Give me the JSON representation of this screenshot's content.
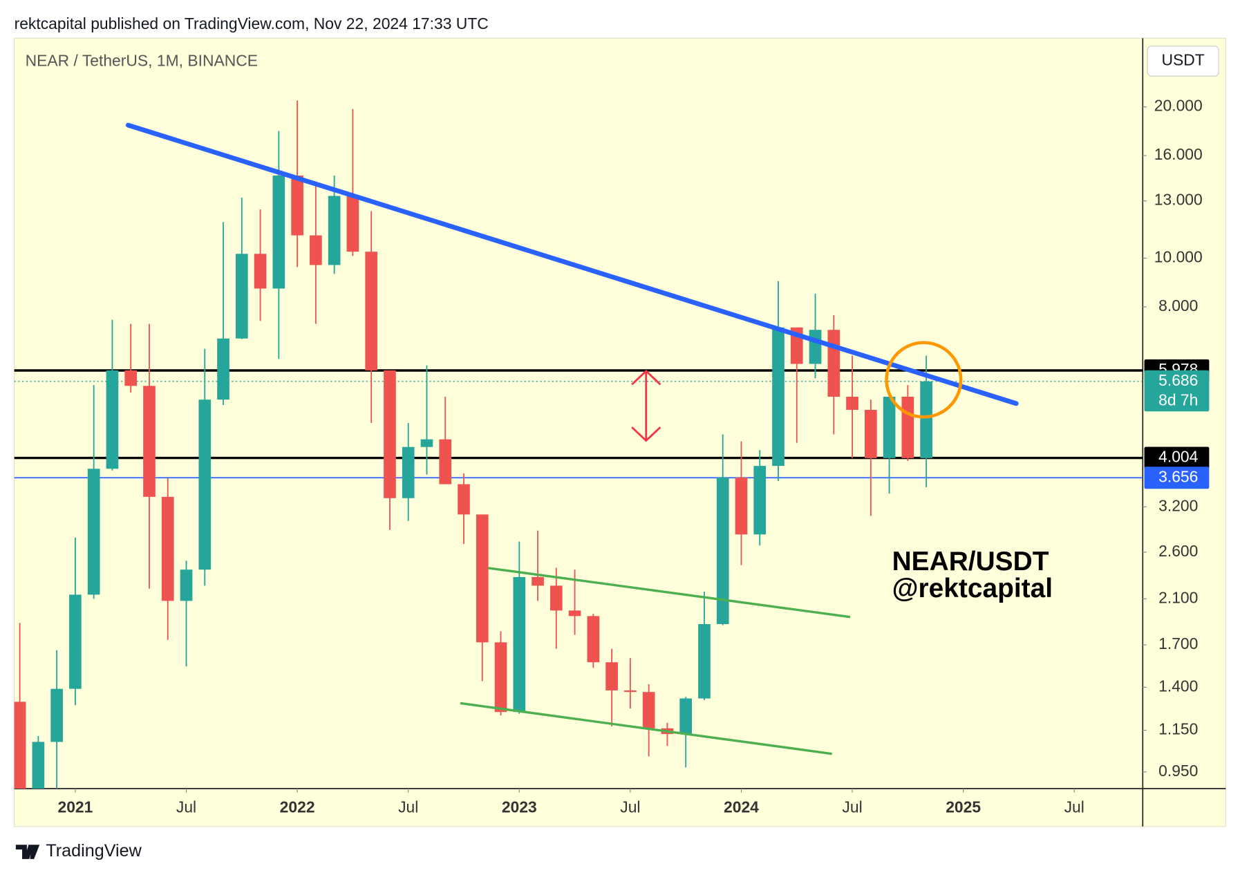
{
  "chart_data": {
    "type": "candlestick",
    "header": "rektcapital published on TradingView.com, Nov 22, 2024 17:33 UTC",
    "title": "NEAR / TetherUS, 1M, BINANCE",
    "currency": "USDT",
    "annotations": [
      "NEAR/USDT",
      "@rektcapital"
    ],
    "brand": "TradingView",
    "log_scale": true,
    "up_color": "#26a69a",
    "down_color": "#ef5350",
    "x": [
      "2020-10",
      "2020-11",
      "2020-12",
      "2021-01",
      "2021-02",
      "2021-03",
      "2021-04",
      "2021-05",
      "2021-06",
      "2021-07",
      "2021-08",
      "2021-09",
      "2021-10",
      "2021-11",
      "2021-12",
      "2022-01",
      "2022-02",
      "2022-03",
      "2022-04",
      "2022-05",
      "2022-06",
      "2022-07",
      "2022-08",
      "2022-09",
      "2022-10",
      "2022-11",
      "2022-12",
      "2023-01",
      "2023-02",
      "2023-03",
      "2023-04",
      "2023-05",
      "2023-06",
      "2023-07",
      "2023-08",
      "2023-09",
      "2023-10",
      "2023-11",
      "2023-12",
      "2024-01",
      "2024-02",
      "2024-03",
      "2024-04",
      "2024-05",
      "2024-06",
      "2024-07",
      "2024-08",
      "2024-09",
      "2024-10",
      "2024-11"
    ],
    "open": [
      1.31,
      0.86,
      1.09,
      1.39,
      2.14,
      3.81,
      5.98,
      5.57,
      3.35,
      2.08,
      2.4,
      5.23,
      6.92,
      10.2,
      8.7,
      14.6,
      11.1,
      9.69,
      13.3,
      10.3,
      5.98,
      3.33,
      4.21,
      4.36,
      3.55,
      3.09,
      1.72,
      1.25,
      2.32,
      2.23,
      1.99,
      1.94,
      1.57,
      1.38,
      1.37,
      1.16,
      1.13,
      1.33,
      1.87,
      3.66,
      2.82,
      3.86,
      7.28,
      6.16,
      7.2,
      5.3,
      4.99,
      4.0,
      5.3,
      4.0
    ],
    "high": [
      1.88,
      1.12,
      1.66,
      2.78,
      5.59,
      7.54,
      7.4,
      7.4,
      3.65,
      2.5,
      6.6,
      11.8,
      13.2,
      12.5,
      17.9,
      20.6,
      14.1,
      14.6,
      19.8,
      12.4,
      5.98,
      4.7,
      6.12,
      5.3,
      3.73,
      3.09,
      1.81,
      2.73,
      2.87,
      2.42,
      2.4,
      1.96,
      1.67,
      1.6,
      1.42,
      1.19,
      1.34,
      2.17,
      4.46,
      4.32,
      4.15,
      9.0,
      7.28,
      8.5,
      7.7,
      6.4,
      5.23,
      5.35,
      5.59,
      6.4
    ],
    "low": [
      0.82,
      0.82,
      0.88,
      1.29,
      2.1,
      3.78,
      5.4,
      2.2,
      1.74,
      1.54,
      2.23,
      5.1,
      6.9,
      7.5,
      6.3,
      9.6,
      7.4,
      9.3,
      10.1,
      4.7,
      2.88,
      3.0,
      3.71,
      3.55,
      2.7,
      1.44,
      1.23,
      1.24,
      2.08,
      1.67,
      1.78,
      1.53,
      1.17,
      1.27,
      1.02,
      1.07,
      0.97,
      1.32,
      1.86,
      2.45,
      2.68,
      3.6,
      4.29,
      5.77,
      4.46,
      4.0,
      3.07,
      3.4,
      3.95,
      3.5
    ],
    "close": [
      0.86,
      1.09,
      1.39,
      2.14,
      3.81,
      5.98,
      5.57,
      3.35,
      2.08,
      2.4,
      5.23,
      6.92,
      10.2,
      8.7,
      14.6,
      11.1,
      9.69,
      13.3,
      10.3,
      5.98,
      3.33,
      4.21,
      4.36,
      3.55,
      3.09,
      1.72,
      1.25,
      2.32,
      2.23,
      1.99,
      1.94,
      1.57,
      1.38,
      1.37,
      1.16,
      1.13,
      1.33,
      1.87,
      3.66,
      2.82,
      3.86,
      7.28,
      6.16,
      7.2,
      5.3,
      4.99,
      4.0,
      5.3,
      4.0,
      5.686
    ],
    "xlim": [
      "2020-10",
      "2025-10"
    ],
    "xticks": [
      {
        "value": "2021-01",
        "label": "2021"
      },
      {
        "value": "2021-07",
        "label": "Jul"
      },
      {
        "value": "2022-01",
        "label": "2022"
      },
      {
        "value": "2022-07",
        "label": "Jul"
      },
      {
        "value": "2023-01",
        "label": "2023"
      },
      {
        "value": "2023-07",
        "label": "Jul"
      },
      {
        "value": "2024-01",
        "label": "2024"
      },
      {
        "value": "2024-07",
        "label": "Jul"
      },
      {
        "value": "2025-01",
        "label": "2025"
      },
      {
        "value": "2025-07",
        "label": "Jul"
      }
    ],
    "ylim": [
      0.88,
      27.4
    ],
    "yticks": [
      {
        "value": 20,
        "label": "20.000"
      },
      {
        "value": 16,
        "label": "16.000"
      },
      {
        "value": 13,
        "label": "13.000"
      },
      {
        "value": 10,
        "label": "10.000"
      },
      {
        "value": 8,
        "label": "8.000"
      },
      {
        "value": 3.2,
        "label": "3.200"
      },
      {
        "value": 2.6,
        "label": "2.600"
      },
      {
        "value": 2.1,
        "label": "2.100"
      },
      {
        "value": 1.7,
        "label": "1.700"
      },
      {
        "value": 1.4,
        "label": "1.400"
      },
      {
        "value": 1.15,
        "label": "1.150"
      },
      {
        "value": 0.95,
        "label": "0.950"
      }
    ],
    "levels": [
      {
        "value": 5.978,
        "color": "#000000",
        "style": "solid"
      },
      {
        "value": 4.004,
        "color": "#000000",
        "style": "solid"
      },
      {
        "value": 3.656,
        "color": "#2962ff",
        "style": "thin"
      },
      {
        "value": 5.686,
        "color": "#26a69a",
        "style": "dotted",
        "countdown": "8d 7h"
      }
    ]
  }
}
